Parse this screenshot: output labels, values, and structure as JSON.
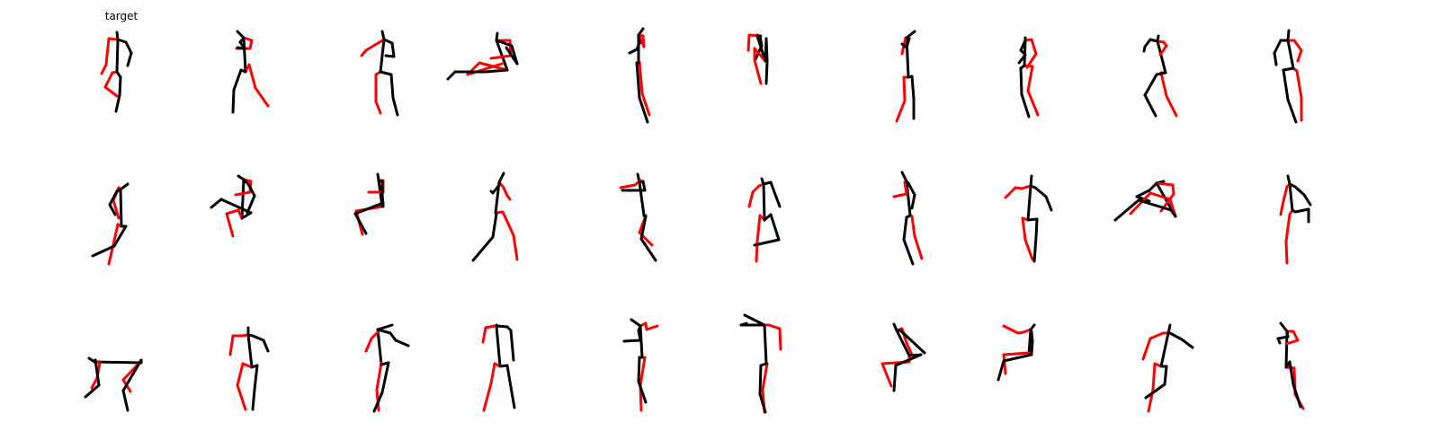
{
  "header": {
    "target_label": "target"
  },
  "colors": {
    "left_limbs": "#ff0000",
    "right_limbs": "#000000",
    "background": "#ffffff"
  },
  "skeleton_edges": [
    [
      0,
      1
    ],
    [
      1,
      2
    ],
    [
      1,
      3
    ],
    [
      3,
      4
    ],
    [
      4,
      5
    ],
    [
      1,
      6
    ],
    [
      6,
      7
    ],
    [
      7,
      8
    ],
    [
      2,
      9
    ],
    [
      9,
      10
    ],
    [
      10,
      11
    ],
    [
      2,
      12
    ],
    [
      12,
      13
    ],
    [
      13,
      14
    ]
  ],
  "edge_colors": [
    "#000",
    "#000",
    "#f00",
    "#f00",
    "#f00",
    "#000",
    "#000",
    "#000",
    "#f00",
    "#f00",
    "#f00",
    "#000",
    "#000",
    "#000"
  ],
  "poses": [
    [
      [
        0,
        -48
      ],
      [
        1,
        -40
      ],
      [
        0,
        -4
      ],
      [
        -9,
        -41
      ],
      [
        -12,
        -12
      ],
      [
        -17,
        -2
      ],
      [
        10,
        -37
      ],
      [
        16,
        -25
      ],
      [
        12,
        -11
      ],
      [
        -5,
        -3
      ],
      [
        -13,
        13
      ],
      [
        0,
        23
      ],
      [
        4,
        2
      ],
      [
        3,
        22
      ],
      [
        -1,
        40
      ]
    ],
    [
      [
        -12,
        -49
      ],
      [
        -5,
        -42
      ],
      [
        -3,
        -4
      ],
      [
        4,
        -39
      ],
      [
        2,
        -30
      ],
      [
        -13,
        -30
      ],
      [
        -9,
        -37
      ],
      [
        -4,
        -30
      ],
      [
        -12,
        -31
      ],
      [
        1,
        -12
      ],
      [
        8,
        14
      ],
      [
        22,
        34
      ],
      [
        -8,
        -6
      ],
      [
        -16,
        16
      ],
      [
        -17,
        41
      ]
    ],
    [
      [
        -1,
        -49
      ],
      [
        1,
        -40
      ],
      [
        -3,
        -4
      ],
      [
        -9,
        -34
      ],
      [
        -19,
        -28
      ],
      [
        -24,
        -22
      ],
      [
        10,
        -36
      ],
      [
        12,
        -21
      ],
      [
        3,
        -22
      ],
      [
        -8,
        -1
      ],
      [
        -8,
        29
      ],
      [
        -3,
        42
      ],
      [
        9,
        -1
      ],
      [
        11,
        25
      ],
      [
        16,
        44
      ]
    ],
    [
      [
        -3,
        -47
      ],
      [
        -4,
        -39
      ],
      [
        8,
        -6
      ],
      [
        11,
        -39
      ],
      [
        12,
        -22
      ],
      [
        -10,
        -19
      ],
      [
        13,
        -33
      ],
      [
        19,
        -13
      ],
      [
        7,
        -31
      ],
      [
        -23,
        -14
      ],
      [
        -36,
        -1
      ],
      [
        2,
        -13
      ],
      [
        -16,
        -4
      ],
      [
        -50,
        -4
      ],
      [
        -58,
        4
      ]
    ],
    [
      [
        1,
        -52
      ],
      [
        -4,
        -45
      ],
      [
        -4,
        -14
      ],
      [
        1,
        -44
      ],
      [
        2,
        -32
      ],
      [
        -4,
        -45
      ],
      [
        -3,
        -36
      ],
      [
        -6,
        -29
      ],
      [
        -14,
        -25
      ],
      [
        -3,
        -15
      ],
      [
        0,
        20
      ],
      [
        8,
        44
      ],
      [
        -6,
        -14
      ],
      [
        -3,
        25
      ],
      [
        6,
        52
      ]
    ],
    [
      [
        -10,
        -45
      ],
      [
        -10,
        -44
      ],
      [
        -1,
        -16
      ],
      [
        -6,
        -44
      ],
      [
        -19,
        -45
      ],
      [
        -20,
        -28
      ],
      [
        -7,
        -44
      ],
      [
        -5,
        -33
      ],
      [
        -12,
        -18
      ],
      [
        -13,
        -30
      ],
      [
        -13,
        -17
      ],
      [
        -6,
        9
      ],
      [
        0,
        -41
      ],
      [
        1,
        -16
      ],
      [
        0,
        9
      ]
    ],
    [
      [
        8,
        -49
      ],
      [
        -1,
        -42
      ],
      [
        1,
        2
      ],
      [
        -2,
        -42
      ],
      [
        -5,
        -29
      ],
      [
        -6,
        -24
      ],
      [
        2,
        -41
      ],
      [
        -1,
        -31
      ],
      [
        -6,
        -35
      ],
      [
        -4,
        2
      ],
      [
        -3,
        28
      ],
      [
        -12,
        51
      ],
      [
        5,
        1
      ],
      [
        7,
        26
      ],
      [
        7,
        48
      ]
    ],
    [
      [
        -3,
        -42
      ],
      [
        -3,
        -39
      ],
      [
        -4,
        -11
      ],
      [
        4,
        -40
      ],
      [
        9,
        -24
      ],
      [
        -1,
        -9
      ],
      [
        -8,
        -28
      ],
      [
        -3,
        -23
      ],
      [
        -10,
        -14
      ],
      [
        5,
        -10
      ],
      [
        0,
        17
      ],
      [
        11,
        44
      ],
      [
        -8,
        -8
      ],
      [
        -7,
        21
      ],
      [
        1,
        46
      ]
    ],
    [
      [
        -1,
        -44
      ],
      [
        -2,
        -38
      ],
      [
        7,
        -3
      ],
      [
        5,
        -37
      ],
      [
        8,
        -33
      ],
      [
        1,
        -23
      ],
      [
        -10,
        -40
      ],
      [
        -16,
        -32
      ],
      [
        -17,
        -27
      ],
      [
        2,
        -3
      ],
      [
        8,
        23
      ],
      [
        19,
        45
      ],
      [
        -3,
        -1
      ],
      [
        -16,
        22
      ],
      [
        -4,
        45
      ]
    ],
    [
      [
        -2,
        -50
      ],
      [
        -3,
        -39
      ],
      [
        3,
        -8
      ],
      [
        4,
        -39
      ],
      [
        12,
        -28
      ],
      [
        8,
        -16
      ],
      [
        -11,
        -39
      ],
      [
        -18,
        -25
      ],
      [
        -16,
        -12
      ],
      [
        7,
        -5
      ],
      [
        12,
        25
      ],
      [
        12,
        50
      ],
      [
        -8,
        -6
      ],
      [
        -3,
        27
      ],
      [
        6,
        52
      ]
    ],
    [
      [
        12,
        -39
      ],
      [
        4,
        -33
      ],
      [
        5,
        8
      ],
      [
        2,
        -35
      ],
      [
        -4,
        -21
      ],
      [
        2,
        -1
      ],
      [
        0,
        -31
      ],
      [
        -8,
        -16
      ],
      [
        -2,
        -5
      ],
      [
        1,
        6
      ],
      [
        -3,
        24
      ],
      [
        -9,
        50
      ],
      [
        10,
        8
      ],
      [
        -3,
        30
      ],
      [
        -27,
        41
      ]
    ],
    [
      [
        -11,
        -48
      ],
      [
        -5,
        -44
      ],
      [
        -7,
        -1
      ],
      [
        3,
        -42
      ],
      [
        2,
        -30
      ],
      [
        -14,
        -27
      ],
      [
        0,
        -39
      ],
      [
        7,
        -26
      ],
      [
        -1,
        -7
      ],
      [
        -11,
        -10
      ],
      [
        -24,
        -6
      ],
      [
        -17,
        19
      ],
      [
        3,
        -7
      ],
      [
        -30,
        -22
      ],
      [
        -41,
        -13
      ]
    ],
    [
      [
        -6,
        -50
      ],
      [
        -5,
        -43
      ],
      [
        -1,
        -14
      ],
      [
        0,
        -43
      ],
      [
        0,
        -30
      ],
      [
        -16,
        -30
      ],
      [
        -1,
        -42
      ],
      [
        -1,
        -28
      ],
      [
        0,
        -14
      ],
      [
        -1,
        -14
      ],
      [
        -30,
        -9
      ],
      [
        -23,
        17
      ],
      [
        0,
        -18
      ],
      [
        -31,
        -6
      ],
      [
        -19,
        16
      ]
    ],
    [
      [
        4,
        -51
      ],
      [
        -1,
        -41
      ],
      [
        -5,
        -7
      ],
      [
        4,
        -35
      ],
      [
        8,
        -26
      ],
      [
        11,
        -22
      ],
      [
        -1,
        -38
      ],
      [
        -8,
        -29
      ],
      [
        -10,
        -31
      ],
      [
        3,
        -8
      ],
      [
        15,
        18
      ],
      [
        19,
        45
      ],
      [
        -4,
        -6
      ],
      [
        -8,
        20
      ],
      [
        -30,
        46
      ]
    ],
    [
      [
        -5,
        -50
      ],
      [
        -3,
        -41
      ],
      [
        2,
        -4
      ],
      [
        -2,
        -43
      ],
      [
        -8,
        -38
      ],
      [
        -24,
        -35
      ],
      [
        1,
        -42
      ],
      [
        3,
        -32
      ],
      [
        -22,
        -32
      ],
      [
        4,
        -4
      ],
      [
        -3,
        15
      ],
      [
        11,
        29
      ],
      [
        4,
        -3
      ],
      [
        -1,
        22
      ],
      [
        15,
        46
      ]
    ],
    [
      [
        -5,
        -45
      ],
      [
        -3,
        -39
      ],
      [
        -2,
        1
      ],
      [
        -8,
        -37
      ],
      [
        -15,
        -30
      ],
      [
        -19,
        -14
      ],
      [
        5,
        -41
      ],
      [
        9,
        -30
      ],
      [
        15,
        -14
      ],
      [
        -7,
        -4
      ],
      [
        -10,
        25
      ],
      [
        -11,
        47
      ],
      [
        5,
        -5
      ],
      [
        14,
        23
      ],
      [
        -13,
        29
      ]
    ],
    [
      [
        -6,
        -52
      ],
      [
        -1,
        -42
      ],
      [
        3,
        -4
      ],
      [
        -3,
        -41
      ],
      [
        -1,
        -28
      ],
      [
        -15,
        -25
      ],
      [
        1,
        -40
      ],
      [
        8,
        -27
      ],
      [
        5,
        -12
      ],
      [
        5,
        -3
      ],
      [
        8,
        19
      ],
      [
        16,
        44
      ],
      [
        -1,
        -2
      ],
      [
        -4,
        23
      ],
      [
        6,
        50
      ]
    ],
    [
      [
        4,
        -48
      ],
      [
        3,
        -37
      ],
      [
        0,
        1
      ],
      [
        -7,
        -34
      ],
      [
        -14,
        -35
      ],
      [
        -25,
        -24
      ],
      [
        8,
        -35
      ],
      [
        20,
        -25
      ],
      [
        26,
        -10
      ],
      [
        -6,
        -1
      ],
      [
        -3,
        23
      ],
      [
        5,
        45
      ],
      [
        10,
        0
      ],
      [
        9,
        20
      ],
      [
        7,
        47
      ]
    ],
    [
      [
        5,
        -42
      ],
      [
        -3,
        -40
      ],
      [
        18,
        -3
      ],
      [
        15,
        -38
      ],
      [
        16,
        -28
      ],
      [
        2,
        -9
      ],
      [
        -11,
        -32
      ],
      [
        -25,
        -25
      ],
      [
        -11,
        -20
      ],
      [
        12,
        -22
      ],
      [
        -10,
        -29
      ],
      [
        -32,
        -6
      ],
      [
        13,
        -10
      ],
      [
        -23,
        -21
      ],
      [
        -49,
        1
      ]
    ],
    [
      [
        -3,
        -48
      ],
      [
        -1,
        -39
      ],
      [
        2,
        -10
      ],
      [
        -4,
        -36
      ],
      [
        -8,
        -20
      ],
      [
        -11,
        -5
      ],
      [
        5,
        -36
      ],
      [
        15,
        -27
      ],
      [
        22,
        -16
      ],
      [
        -1,
        -5
      ],
      [
        -5,
        25
      ],
      [
        -4,
        49
      ],
      [
        5,
        -8
      ],
      [
        20,
        -11
      ],
      [
        20,
        3
      ]
    ],
    [
      [
        -31,
        -8
      ],
      [
        -25,
        -4
      ],
      [
        27,
        -3
      ],
      [
        -19,
        -3
      ],
      [
        -22,
        14
      ],
      [
        -28,
        25
      ],
      [
        -24,
        -6
      ],
      [
        -20,
        22
      ],
      [
        -35,
        35
      ],
      [
        26,
        -4
      ],
      [
        7,
        16
      ],
      [
        15,
        29
      ],
      [
        27,
        -6
      ],
      [
        7,
        28
      ],
      [
        12,
        50
      ]
    ],
    [
      [
        0,
        -42
      ],
      [
        0,
        -34
      ],
      [
        4,
        2
      ],
      [
        -7,
        -33
      ],
      [
        -17,
        -33
      ],
      [
        -20,
        -12
      ],
      [
        5,
        -33
      ],
      [
        17,
        -28
      ],
      [
        22,
        -16
      ],
      [
        -6,
        -2
      ],
      [
        -12,
        22
      ],
      [
        -3,
        49
      ],
      [
        10,
        0
      ],
      [
        7,
        27
      ],
      [
        5,
        49
      ]
    ],
    [
      [
        10,
        -45
      ],
      [
        -6,
        -40
      ],
      [
        -2,
        -1
      ],
      [
        -5,
        -38
      ],
      [
        -13,
        -30
      ],
      [
        -19,
        -16
      ],
      [
        8,
        -36
      ],
      [
        14,
        -28
      ],
      [
        28,
        -22
      ],
      [
        -2,
        -3
      ],
      [
        -7,
        27
      ],
      [
        -5,
        50
      ],
      [
        6,
        -3
      ],
      [
        -1,
        30
      ],
      [
        -10,
        51
      ]
    ],
    [
      [
        -4,
        -45
      ],
      [
        -4,
        -44
      ],
      [
        0,
        1
      ],
      [
        -6,
        -44
      ],
      [
        -16,
        -42
      ],
      [
        -19,
        -26
      ],
      [
        8,
        -43
      ],
      [
        12,
        -39
      ],
      [
        15,
        -6
      ],
      [
        -6,
        -2
      ],
      [
        -10,
        20
      ],
      [
        -18,
        50
      ],
      [
        8,
        0
      ],
      [
        12,
        24
      ],
      [
        16,
        47
      ]
    ],
    [
      [
        -12,
        -51
      ],
      [
        -2,
        -44
      ],
      [
        0,
        -9
      ],
      [
        4,
        -47
      ],
      [
        5,
        -40
      ],
      [
        17,
        -44
      ],
      [
        -4,
        -39
      ],
      [
        -2,
        -28
      ],
      [
        -20,
        -27
      ],
      [
        3,
        -9
      ],
      [
        -2,
        22
      ],
      [
        -1,
        50
      ],
      [
        -3,
        -9
      ],
      [
        -4,
        18
      ],
      [
        4,
        41
      ]
    ],
    [
      [
        -24,
        -56
      ],
      [
        -2,
        -45
      ],
      [
        0,
        -2
      ],
      [
        3,
        -45
      ],
      [
        15,
        -41
      ],
      [
        16,
        -18
      ],
      [
        -7,
        -45
      ],
      [
        -28,
        -45
      ],
      [
        -22,
        -47
      ],
      [
        1,
        -2
      ],
      [
        -4,
        27
      ],
      [
        -2,
        52
      ],
      [
        -6,
        0
      ],
      [
        -7,
        32
      ],
      [
        -1,
        52
      ]
    ],
    [
      [
        -15,
        -46
      ],
      [
        -12,
        -39
      ],
      [
        2,
        -11
      ],
      [
        -6,
        -41
      ],
      [
        -1,
        -25
      ],
      [
        5,
        -12
      ],
      [
        -8,
        -39
      ],
      [
        4,
        -28
      ],
      [
        19,
        -14
      ],
      [
        2,
        -4
      ],
      [
        -28,
        -2
      ],
      [
        -18,
        23
      ],
      [
        15,
        -12
      ],
      [
        -13,
        0
      ],
      [
        -15,
        28
      ]
    ],
    [
      [
        7,
        -45
      ],
      [
        3,
        -40
      ],
      [
        1,
        -12
      ],
      [
        -5,
        -37
      ],
      [
        -11,
        -36
      ],
      [
        -27,
        -44
      ],
      [
        4,
        -37
      ],
      [
        5,
        -27
      ],
      [
        4,
        -14
      ],
      [
        1,
        -14
      ],
      [
        -27,
        -12
      ],
      [
        -25,
        9
      ],
      [
        4,
        -12
      ],
      [
        -27,
        -5
      ],
      [
        -33,
        16
      ]
    ],
    [
      [
        12,
        -45
      ],
      [
        10,
        -36
      ],
      [
        2,
        1
      ],
      [
        4,
        -36
      ],
      [
        -10,
        -30
      ],
      [
        -18,
        -7
      ],
      [
        12,
        -36
      ],
      [
        25,
        -29
      ],
      [
        37,
        -20
      ],
      [
        -5,
        -2
      ],
      [
        -7,
        27
      ],
      [
        -12,
        51
      ],
      [
        8,
        1
      ],
      [
        6,
        21
      ],
      [
        -15,
        36
      ]
    ],
    [
      [
        -11,
        -47
      ],
      [
        -4,
        -38
      ],
      [
        -5,
        2
      ],
      [
        3,
        -38
      ],
      [
        8,
        -28
      ],
      [
        -5,
        -24
      ],
      [
        -3,
        -32
      ],
      [
        -14,
        -30
      ],
      [
        -12,
        -25
      ],
      [
        4,
        3
      ],
      [
        5,
        32
      ],
      [
        14,
        48
      ],
      [
        -1,
        -4
      ],
      [
        3,
        21
      ],
      [
        11,
        46
      ]
    ]
  ]
}
